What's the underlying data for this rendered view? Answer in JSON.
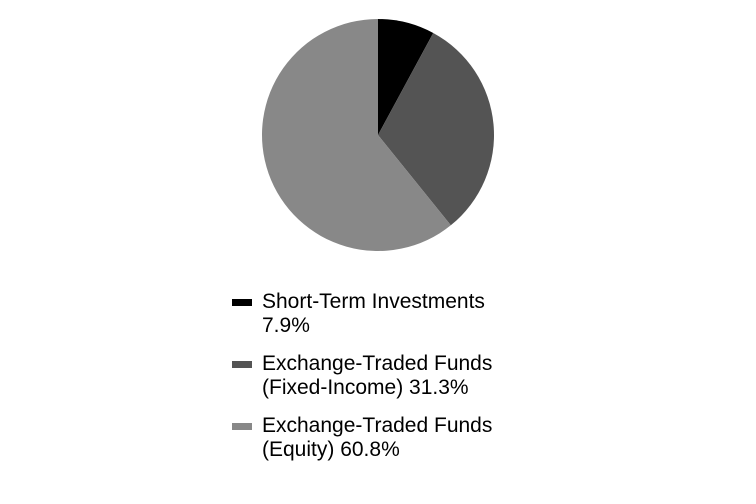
{
  "chart_data": {
    "type": "pie",
    "categories": [
      "Short-Term Investments",
      "Exchange-Traded Funds (Fixed-Income)",
      "Exchange-Traded Funds (Equity)"
    ],
    "values": [
      7.9,
      31.3,
      60.8
    ],
    "value_labels": [
      "7.9%",
      "31.3%",
      "60.8%"
    ],
    "colors": [
      "#000000",
      "#545454",
      "#888888"
    ],
    "legend": "bottom"
  }
}
